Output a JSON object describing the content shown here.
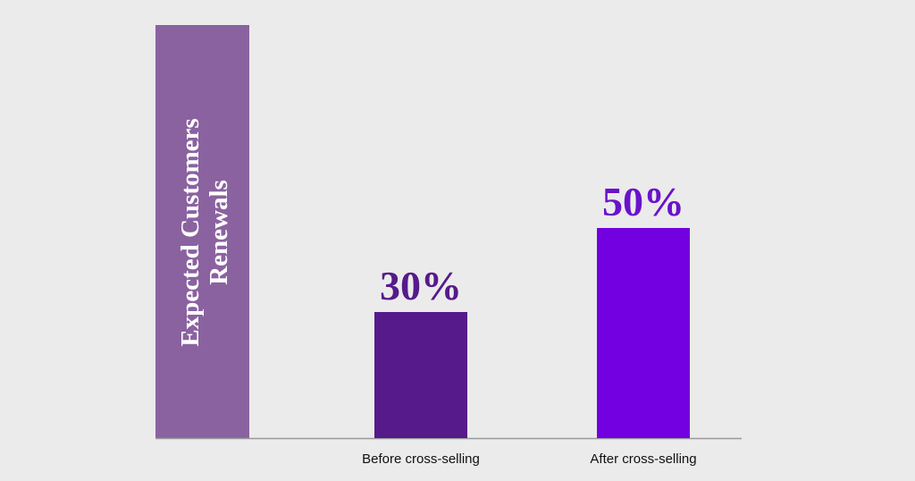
{
  "chart_data": {
    "type": "bar",
    "y_label": [
      "Expected Customers",
      "Renewals"
    ],
    "y_label_color": "#8a62a0",
    "categories": [
      "Before cross-selling",
      "After cross-selling"
    ],
    "values": [
      30,
      50
    ],
    "value_labels": [
      "30%",
      "50%"
    ],
    "colors": [
      "#561a8b",
      "#7300e0"
    ],
    "label_colors": [
      "#561a8b",
      "#6a12cc"
    ]
  }
}
